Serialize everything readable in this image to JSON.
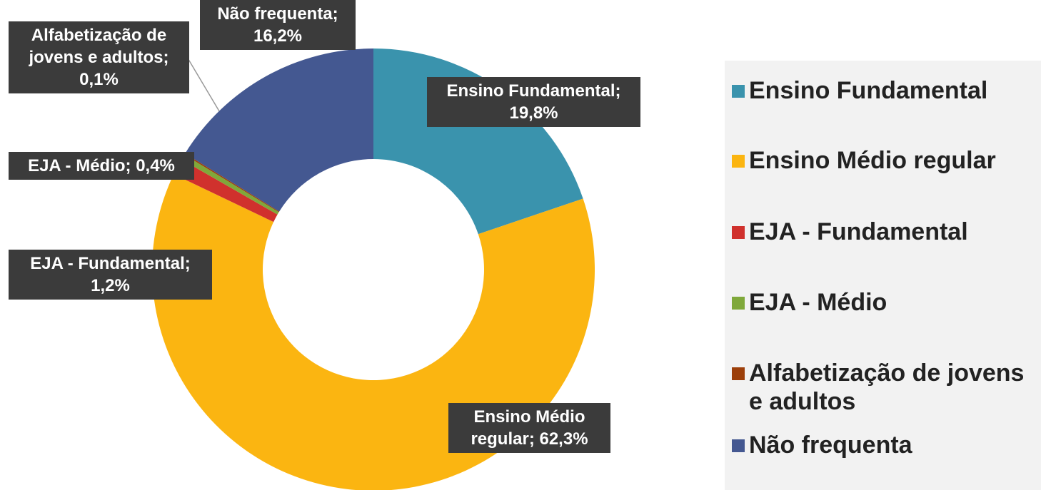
{
  "chart_data": {
    "type": "donut",
    "categories": [
      "Ensino Fundamental",
      "Ensino Médio regular",
      "EJA - Fundamental",
      "EJA - Médio",
      "Alfabetização de jovens e adultos",
      "Não frequenta"
    ],
    "values": [
      19.8,
      62.3,
      1.2,
      0.4,
      0.1,
      16.2
    ],
    "value_labels": [
      "Ensino Fundamental; 19,8%",
      "Ensino Médio regular; 62,3%",
      "EJA - Fundamental; 1,2%",
      "EJA - Médio; 0,4%",
      "Alfabetização de jovens e adultos; 0,1%",
      "Não frequenta; 16,2%"
    ],
    "colors": [
      "#3a93ad",
      "#fbb511",
      "#d0312d",
      "#7fa83a",
      "#9c3f0a",
      "#445891"
    ],
    "legend": "right"
  }
}
